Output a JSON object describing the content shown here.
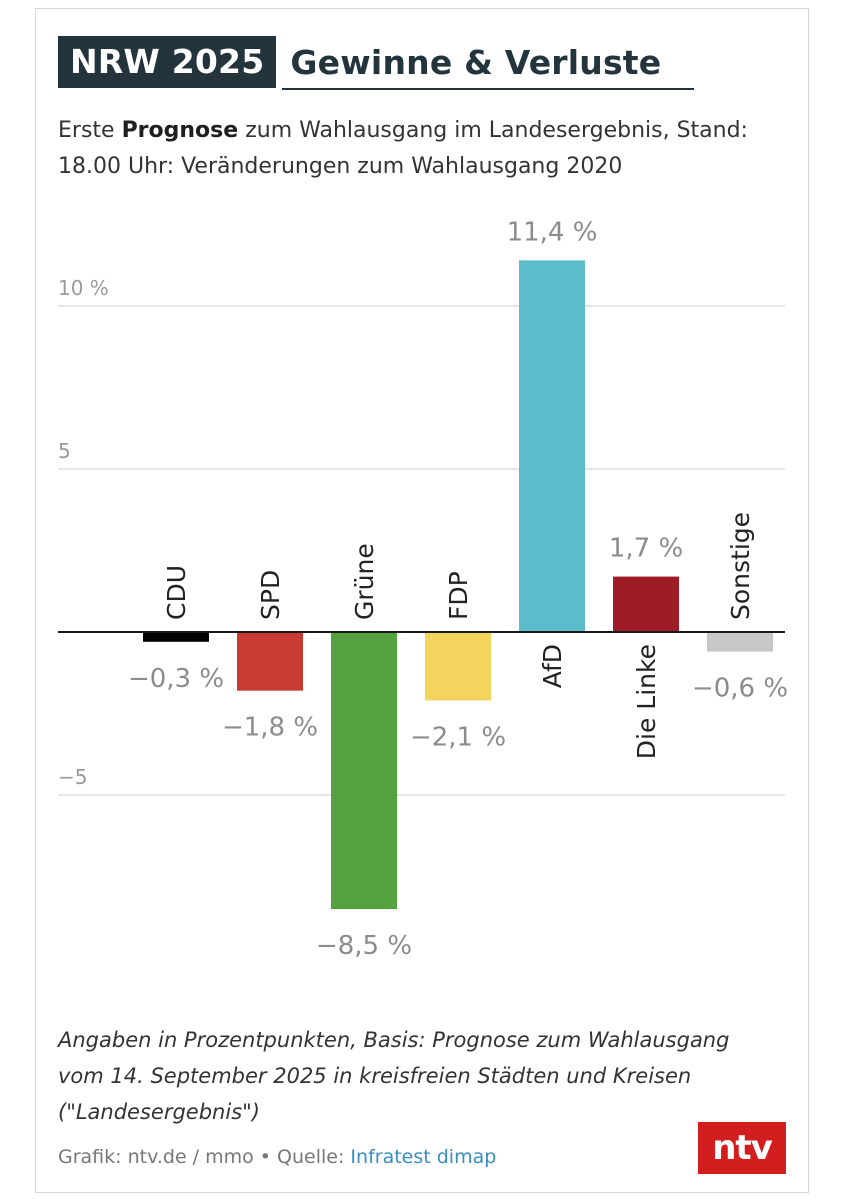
{
  "header": {
    "badge": "NRW 2025",
    "title": "Gewinne & Verluste"
  },
  "subtitle": {
    "prefix": "Erste ",
    "bold": "Prognose",
    "rest": " zum Wahlausgang im Landesergebnis, Stand: 18.00 Uhr: Veränderungen zum Wahlausgang 2020"
  },
  "chart_data": {
    "type": "bar",
    "categories": [
      "CDU",
      "SPD",
      "Grüne",
      "FDP",
      "AfD",
      "Die Linke",
      "Sonstige"
    ],
    "values": [
      -0.3,
      -1.8,
      -8.5,
      -2.1,
      11.4,
      1.7,
      -0.6
    ],
    "value_labels": [
      "−0,3 %",
      "−1,8 %",
      "−8,5 %",
      "−2,1 %",
      "11,4 %",
      "1,7 %",
      "−0,6 %"
    ],
    "colors": [
      "#000000",
      "#c93a33",
      "#55a03f",
      "#f5d45e",
      "#5bbccc",
      "#9e1c26",
      "#c7c7c7"
    ],
    "y_ticks": [
      {
        "value": 10,
        "label": "10 %"
      },
      {
        "value": 5,
        "label": "5"
      },
      {
        "value": -5,
        "label": "−5"
      }
    ],
    "ylim": [
      -9.1,
      12.4
    ],
    "grid": true,
    "title": "Gewinne & Verluste"
  },
  "footnote": "Angaben in Prozentpunkten, Basis: Prognose zum Wahlausgang vom 14. September 2025 in kreisfreien Städten und Kreisen (\"Landesergebnis\")",
  "source": {
    "prefix": "Grafik: ntv.de / mmo • Quelle: ",
    "link": "Infratest dimap"
  },
  "logo": "ntv"
}
